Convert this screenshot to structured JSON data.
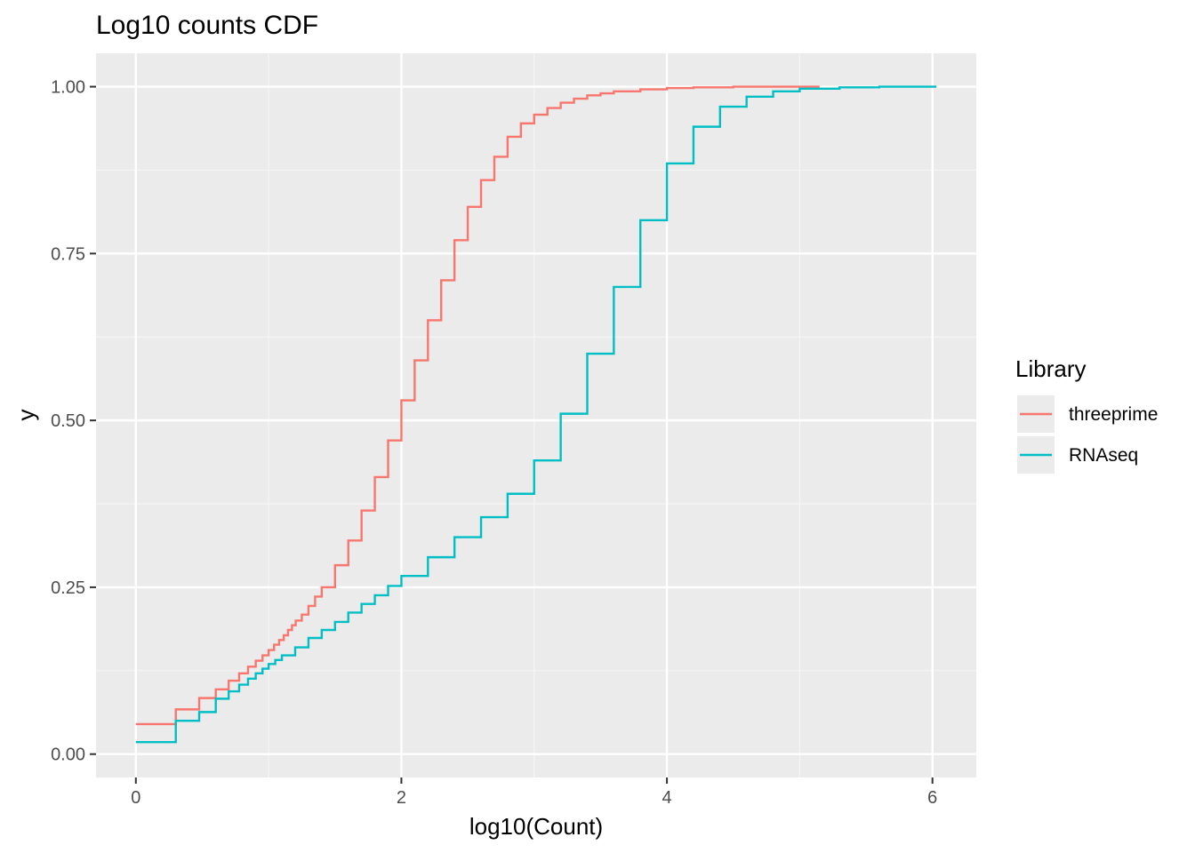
{
  "chart_data": {
    "type": "line",
    "step": true,
    "title": "Log10 counts CDF",
    "xlabel": "log10(Count)",
    "ylabel": "y",
    "xlim": [
      -0.3,
      6.33
    ],
    "ylim": [
      -0.035,
      1.05
    ],
    "x_ticks": [
      0,
      2,
      4,
      6
    ],
    "x_tick_labels": [
      "0",
      "2",
      "4",
      "6"
    ],
    "y_ticks": [
      0,
      0.25,
      0.5,
      0.75,
      1.0
    ],
    "y_tick_labels": [
      "0.00",
      "0.25",
      "0.50",
      "0.75",
      "1.00"
    ],
    "grid": true,
    "legend": {
      "title": "Library",
      "placement": "right"
    },
    "series": [
      {
        "name": "threeprime",
        "color": "#F8766D",
        "x": [
          0,
          0.301,
          0.477,
          0.602,
          0.699,
          0.778,
          0.845,
          0.903,
          0.954,
          1.0,
          1.041,
          1.079,
          1.114,
          1.146,
          1.176,
          1.204,
          1.25,
          1.3,
          1.35,
          1.4,
          1.5,
          1.6,
          1.7,
          1.8,
          1.9,
          2.0,
          2.1,
          2.2,
          2.3,
          2.4,
          2.5,
          2.6,
          2.7,
          2.8,
          2.9,
          3.0,
          3.1,
          3.2,
          3.3,
          3.4,
          3.5,
          3.6,
          3.8,
          4.0,
          4.2,
          4.5,
          4.8,
          5.15
        ],
        "y": [
          0.045,
          0.067,
          0.084,
          0.097,
          0.11,
          0.121,
          0.131,
          0.14,
          0.148,
          0.156,
          0.164,
          0.171,
          0.178,
          0.186,
          0.193,
          0.2,
          0.209,
          0.222,
          0.236,
          0.25,
          0.283,
          0.32,
          0.365,
          0.415,
          0.47,
          0.53,
          0.59,
          0.65,
          0.71,
          0.77,
          0.82,
          0.86,
          0.895,
          0.925,
          0.945,
          0.958,
          0.968,
          0.976,
          0.982,
          0.987,
          0.99,
          0.993,
          0.996,
          0.998,
          0.999,
          1.0,
          1.0,
          1.0
        ]
      },
      {
        "name": "RNAseq",
        "color": "#00BFC4",
        "x": [
          0,
          0.301,
          0.477,
          0.602,
          0.699,
          0.778,
          0.845,
          0.903,
          0.954,
          1.0,
          1.05,
          1.1,
          1.2,
          1.3,
          1.4,
          1.5,
          1.6,
          1.7,
          1.8,
          1.9,
          2.0,
          2.2,
          2.4,
          2.6,
          2.8,
          3.0,
          3.2,
          3.4,
          3.6,
          3.8,
          4.0,
          4.2,
          4.4,
          4.6,
          4.8,
          5.0,
          5.3,
          5.6,
          6.03
        ],
        "y": [
          0.018,
          0.05,
          0.063,
          0.083,
          0.094,
          0.104,
          0.113,
          0.121,
          0.128,
          0.135,
          0.141,
          0.148,
          0.16,
          0.174,
          0.186,
          0.198,
          0.212,
          0.225,
          0.238,
          0.252,
          0.267,
          0.295,
          0.325,
          0.355,
          0.39,
          0.44,
          0.51,
          0.6,
          0.7,
          0.8,
          0.885,
          0.94,
          0.97,
          0.985,
          0.993,
          0.997,
          0.999,
          1.0,
          1.0
        ]
      }
    ]
  }
}
